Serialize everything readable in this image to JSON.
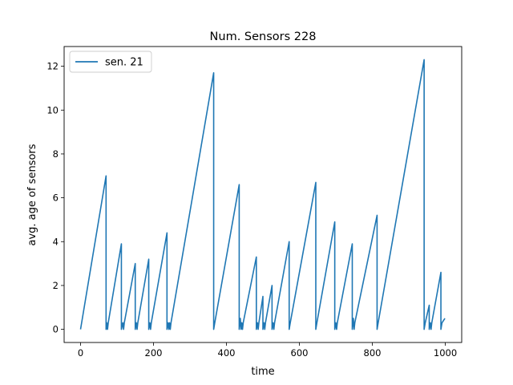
{
  "chart_data": {
    "type": "line",
    "title": "Num. Sensors 228",
    "xlabel": "time",
    "ylabel": "avg. age of sensors",
    "xlim": [
      -45,
      1045
    ],
    "ylim": [
      -0.6,
      12.9
    ],
    "xticks": [
      0,
      200,
      400,
      600,
      800,
      1000
    ],
    "yticks": [
      0,
      2,
      4,
      6,
      8,
      10,
      12
    ],
    "grid": false,
    "legend": "top-left",
    "series": [
      {
        "name": "sen. 21",
        "color": "#1f77b4",
        "points": [
          [
            0,
            0
          ],
          [
            70,
            7.0
          ],
          [
            70,
            0
          ],
          [
            72,
            0.3
          ],
          [
            74,
            0
          ],
          [
            76,
            0.3
          ],
          [
            112,
            3.9
          ],
          [
            112,
            0
          ],
          [
            116,
            0.3
          ],
          [
            118,
            0
          ],
          [
            120,
            0.3
          ],
          [
            150,
            3.0
          ],
          [
            150,
            0
          ],
          [
            153,
            0.3
          ],
          [
            155,
            0
          ],
          [
            157,
            0.3
          ],
          [
            187,
            3.2
          ],
          [
            187,
            0
          ],
          [
            190,
            0.3
          ],
          [
            192,
            0
          ],
          [
            194,
            0.3
          ],
          [
            237,
            4.4
          ],
          [
            237,
            0
          ],
          [
            240,
            0.3
          ],
          [
            242,
            0
          ],
          [
            244,
            0.3
          ],
          [
            246,
            0
          ],
          [
            248,
            0.3
          ],
          [
            365,
            11.7
          ],
          [
            365,
            0
          ],
          [
            368,
            0.3
          ],
          [
            435,
            6.6
          ],
          [
            435,
            0
          ],
          [
            438,
            0.5
          ],
          [
            440,
            0
          ],
          [
            442,
            0.3
          ],
          [
            444,
            0
          ],
          [
            446,
            0.3
          ],
          [
            482,
            3.3
          ],
          [
            482,
            0
          ],
          [
            485,
            0.3
          ],
          [
            487,
            0
          ],
          [
            489,
            0.3
          ],
          [
            500,
            1.5
          ],
          [
            500,
            0
          ],
          [
            503,
            0.3
          ],
          [
            505,
            0
          ],
          [
            507,
            0.3
          ],
          [
            525,
            2.0
          ],
          [
            525,
            0
          ],
          [
            528,
            0.3
          ],
          [
            530,
            0
          ],
          [
            532,
            0.3
          ],
          [
            572,
            4.0
          ],
          [
            572,
            0
          ],
          [
            575,
            0.3
          ],
          [
            645,
            6.7
          ],
          [
            645,
            0
          ],
          [
            648,
            0.3
          ],
          [
            697,
            4.9
          ],
          [
            697,
            0
          ],
          [
            700,
            0.3
          ],
          [
            702,
            0
          ],
          [
            704,
            0.3
          ],
          [
            745,
            3.9
          ],
          [
            745,
            0
          ],
          [
            748,
            0.5
          ],
          [
            750,
            0
          ],
          [
            752,
            0.3
          ],
          [
            813,
            5.2
          ],
          [
            813,
            0
          ],
          [
            816,
            0.3
          ],
          [
            942,
            12.3
          ],
          [
            942,
            0
          ],
          [
            945,
            0.3
          ],
          [
            956,
            1.1
          ],
          [
            956,
            0
          ],
          [
            959,
            0.3
          ],
          [
            961,
            0
          ],
          [
            963,
            0.3
          ],
          [
            988,
            2.6
          ],
          [
            988,
            0
          ],
          [
            991,
            0.3
          ],
          [
            999,
            0.5
          ]
        ]
      }
    ]
  }
}
